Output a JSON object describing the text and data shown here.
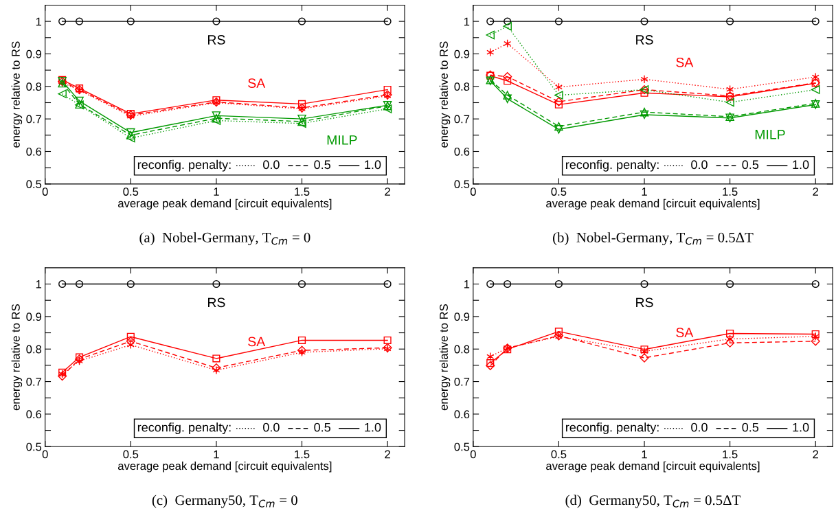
{
  "chart_data": [
    {
      "type": "line",
      "title": "(a)  Nobel-Germany, T$_{Cm}$ = 0",
      "xlabel": "average peak demand [circuit equivalents]",
      "ylabel": "energy relative to RS",
      "grid": false,
      "x": [
        0.1,
        0.2,
        0.5,
        1,
        1.5,
        2
      ],
      "xlim": [
        0,
        2.1
      ],
      "xticks": [
        {
          "value": 0,
          "label": "0"
        },
        {
          "value": 0.5,
          "label": "0.5"
        },
        {
          "value": 1,
          "label": "1"
        },
        {
          "value": 1.5,
          "label": "1.5"
        },
        {
          "value": 2,
          "label": "2"
        }
      ],
      "ylim": [
        0.5,
        1.05
      ],
      "yticks": [
        {
          "value": 0.5,
          "label": "0.5"
        },
        {
          "value": 0.55,
          "label": null
        },
        {
          "value": 0.6,
          "label": "0.6"
        },
        {
          "value": 0.65,
          "label": null
        },
        {
          "value": 0.7,
          "label": "0.7"
        },
        {
          "value": 0.75,
          "label": null
        },
        {
          "value": 0.8,
          "label": "0.8"
        },
        {
          "value": 0.85,
          "label": null
        },
        {
          "value": 0.9,
          "label": "0.9"
        },
        {
          "value": 0.95,
          "label": null
        },
        {
          "value": 1,
          "label": "1"
        }
      ],
      "series": [
        {
          "color": "#000000",
          "marker": "circle",
          "line_style": "solid",
          "values": [
            1,
            1,
            1,
            1,
            1,
            1
          ]
        },
        {
          "color": "#ff0000",
          "marker": "cross",
          "line_style": "dotted",
          "values": [
            0.812,
            0.788,
            0.708,
            0.75,
            0.731,
            0.771
          ]
        },
        {
          "color": "#ff0000",
          "marker": "diamond",
          "line_style": "dashed",
          "values": [
            0.815,
            0.79,
            0.712,
            0.752,
            0.734,
            0.774
          ]
        },
        {
          "color": "#ff0000",
          "marker": "square",
          "line_style": "solid",
          "values": [
            0.82,
            0.794,
            0.716,
            0.758,
            0.746,
            0.79
          ]
        },
        {
          "color": "#009900",
          "marker": "triangle_left",
          "line_style": "dotted",
          "values": [
            0.777,
            0.743,
            0.641,
            0.695,
            0.686,
            0.731
          ]
        },
        {
          "color": "#009900",
          "marker": "triangle",
          "line_style": "dashed",
          "values": [
            0.81,
            0.745,
            0.65,
            0.702,
            0.692,
            0.74
          ]
        },
        {
          "color": "#009900",
          "marker": "triangle_down",
          "line_style": "solid",
          "values": [
            0.816,
            0.755,
            0.658,
            0.71,
            0.7,
            0.742
          ]
        }
      ],
      "annotations": [
        "RS",
        "SA",
        "MILP",
        "reconfig. penalty:",
        "0.0",
        "0.5",
        "1.0"
      ]
    },
    {
      "type": "line",
      "title": "(b)  Nobel-Germany, T$_{Cm}$ = 0.5ΔT",
      "xlabel": "average peak demand [circuit equivalents]",
      "ylabel": "energy relative to RS",
      "grid": false,
      "x": [
        0.1,
        0.2,
        0.5,
        1,
        1.5,
        2
      ],
      "xlim": [
        0,
        2.1
      ],
      "xticks": [
        {
          "value": 0,
          "label": "0"
        },
        {
          "value": 0.5,
          "label": "0.5"
        },
        {
          "value": 1,
          "label": "1"
        },
        {
          "value": 1.5,
          "label": "1.5"
        },
        {
          "value": 2,
          "label": "2"
        }
      ],
      "ylim": [
        0.5,
        1.05
      ],
      "yticks": [
        {
          "value": 0.5,
          "label": "0.5"
        },
        {
          "value": 0.55,
          "label": null
        },
        {
          "value": 0.6,
          "label": "0.6"
        },
        {
          "value": 0.65,
          "label": null
        },
        {
          "value": 0.7,
          "label": "0.7"
        },
        {
          "value": 0.75,
          "label": null
        },
        {
          "value": 0.8,
          "label": "0.8"
        },
        {
          "value": 0.85,
          "label": null
        },
        {
          "value": 0.9,
          "label": "0.9"
        },
        {
          "value": 0.95,
          "label": null
        },
        {
          "value": 1,
          "label": "1"
        }
      ],
      "series": [
        {
          "color": "#000000",
          "marker": "circle",
          "line_style": "solid",
          "values": [
            1,
            1,
            1,
            1,
            1,
            1
          ]
        },
        {
          "color": "#ff0000",
          "marker": "cross",
          "line_style": "dotted",
          "values": [
            0.905,
            0.932,
            0.798,
            0.822,
            0.791,
            0.829
          ]
        },
        {
          "color": "#ff0000",
          "marker": "diamond",
          "line_style": "dashed",
          "values": [
            0.835,
            0.83,
            0.753,
            0.79,
            0.771,
            0.811
          ]
        },
        {
          "color": "#ff0000",
          "marker": "square",
          "line_style": "solid",
          "values": [
            0.833,
            0.817,
            0.744,
            0.78,
            0.768,
            0.81
          ]
        },
        {
          "color": "#009900",
          "marker": "triangle_left",
          "line_style": "dotted",
          "values": [
            0.958,
            0.985,
            0.773,
            0.79,
            0.751,
            0.79
          ]
        },
        {
          "color": "#009900",
          "marker": "triangle",
          "line_style": "dashed",
          "values": [
            0.82,
            0.773,
            0.677,
            0.721,
            0.707,
            0.748
          ]
        },
        {
          "color": "#009900",
          "marker": "triangle_down",
          "line_style": "solid",
          "values": [
            0.817,
            0.762,
            0.668,
            0.713,
            0.703,
            0.744
          ]
        }
      ],
      "annotations": [
        "RS",
        "SA",
        "MILP",
        "reconfig. penalty:",
        "0.0",
        "0.5",
        "1.0"
      ]
    },
    {
      "type": "line",
      "title": "(c)  Germany50, T$_{Cm}$ = 0",
      "xlabel": "average peak demand [circuit equivalents]",
      "ylabel": "energy relative to RS",
      "grid": false,
      "x": [
        0.1,
        0.2,
        0.5,
        1,
        1.5,
        2
      ],
      "xlim": [
        0,
        2.1
      ],
      "xticks": [
        {
          "value": 0,
          "label": "0"
        },
        {
          "value": 0.5,
          "label": "0.5"
        },
        {
          "value": 1,
          "label": "1"
        },
        {
          "value": 1.5,
          "label": "1.5"
        },
        {
          "value": 2,
          "label": "2"
        }
      ],
      "ylim": [
        0.5,
        1.05
      ],
      "yticks": [
        {
          "value": 0.5,
          "label": "0.5"
        },
        {
          "value": 0.55,
          "label": null
        },
        {
          "value": 0.6,
          "label": "0.6"
        },
        {
          "value": 0.65,
          "label": null
        },
        {
          "value": 0.7,
          "label": "0.7"
        },
        {
          "value": 0.75,
          "label": null
        },
        {
          "value": 0.8,
          "label": "0.8"
        },
        {
          "value": 0.85,
          "label": null
        },
        {
          "value": 0.9,
          "label": "0.9"
        },
        {
          "value": 0.95,
          "label": null
        },
        {
          "value": 1,
          "label": "1"
        }
      ],
      "series": [
        {
          "color": "#000000",
          "marker": "circle",
          "line_style": "solid",
          "values": [
            1,
            1,
            1,
            1,
            1,
            1
          ]
        },
        {
          "color": "#ff0000",
          "marker": "cross",
          "line_style": "dotted",
          "values": [
            0.723,
            0.763,
            0.813,
            0.735,
            0.79,
            0.801
          ]
        },
        {
          "color": "#ff0000",
          "marker": "diamond",
          "line_style": "dashed",
          "values": [
            0.717,
            0.769,
            0.824,
            0.742,
            0.796,
            0.804
          ]
        },
        {
          "color": "#ff0000",
          "marker": "square",
          "line_style": "solid",
          "values": [
            0.728,
            0.775,
            0.838,
            0.771,
            0.827,
            0.827
          ]
        }
      ],
      "annotations": [
        "RS",
        "SA",
        "reconfig. penalty:",
        "0.0",
        "0.5",
        "1.0"
      ]
    },
    {
      "type": "line",
      "title": "(d)  Germany50, T$_{Cm}$ = 0.5ΔT",
      "xlabel": "average peak demand [circuit equivalents]",
      "ylabel": "energy relative to RS",
      "grid": false,
      "x": [
        0.1,
        0.2,
        0.5,
        1,
        1.5,
        2
      ],
      "xlim": [
        0,
        2.1
      ],
      "xticks": [
        {
          "value": 0,
          "label": "0"
        },
        {
          "value": 0.5,
          "label": "0.5"
        },
        {
          "value": 1,
          "label": "1"
        },
        {
          "value": 1.5,
          "label": "1.5"
        },
        {
          "value": 2,
          "label": "2"
        }
      ],
      "ylim": [
        0.5,
        1.05
      ],
      "yticks": [
        {
          "value": 0.5,
          "label": "0.5"
        },
        {
          "value": 0.55,
          "label": null
        },
        {
          "value": 0.6,
          "label": "0.6"
        },
        {
          "value": 0.65,
          "label": null
        },
        {
          "value": 0.7,
          "label": "0.7"
        },
        {
          "value": 0.75,
          "label": null
        },
        {
          "value": 0.8,
          "label": "0.8"
        },
        {
          "value": 0.85,
          "label": null
        },
        {
          "value": 0.9,
          "label": "0.9"
        },
        {
          "value": 0.95,
          "label": null
        },
        {
          "value": 1,
          "label": "1"
        }
      ],
      "series": [
        {
          "color": "#000000",
          "marker": "circle",
          "line_style": "solid",
          "values": [
            1,
            1,
            1,
            1,
            1,
            1
          ]
        },
        {
          "color": "#ff0000",
          "marker": "cross",
          "line_style": "dotted",
          "values": [
            0.777,
            0.803,
            0.839,
            0.793,
            0.831,
            0.839
          ]
        },
        {
          "color": "#ff0000",
          "marker": "diamond",
          "line_style": "dashed",
          "values": [
            0.749,
            0.803,
            0.841,
            0.773,
            0.819,
            0.824
          ]
        },
        {
          "color": "#ff0000",
          "marker": "square",
          "line_style": "solid",
          "values": [
            0.757,
            0.799,
            0.854,
            0.799,
            0.848,
            0.846
          ]
        }
      ],
      "annotations": [
        "RS",
        "SA",
        "reconfig. penalty:",
        "0.0",
        "0.5",
        "1.0"
      ]
    }
  ]
}
